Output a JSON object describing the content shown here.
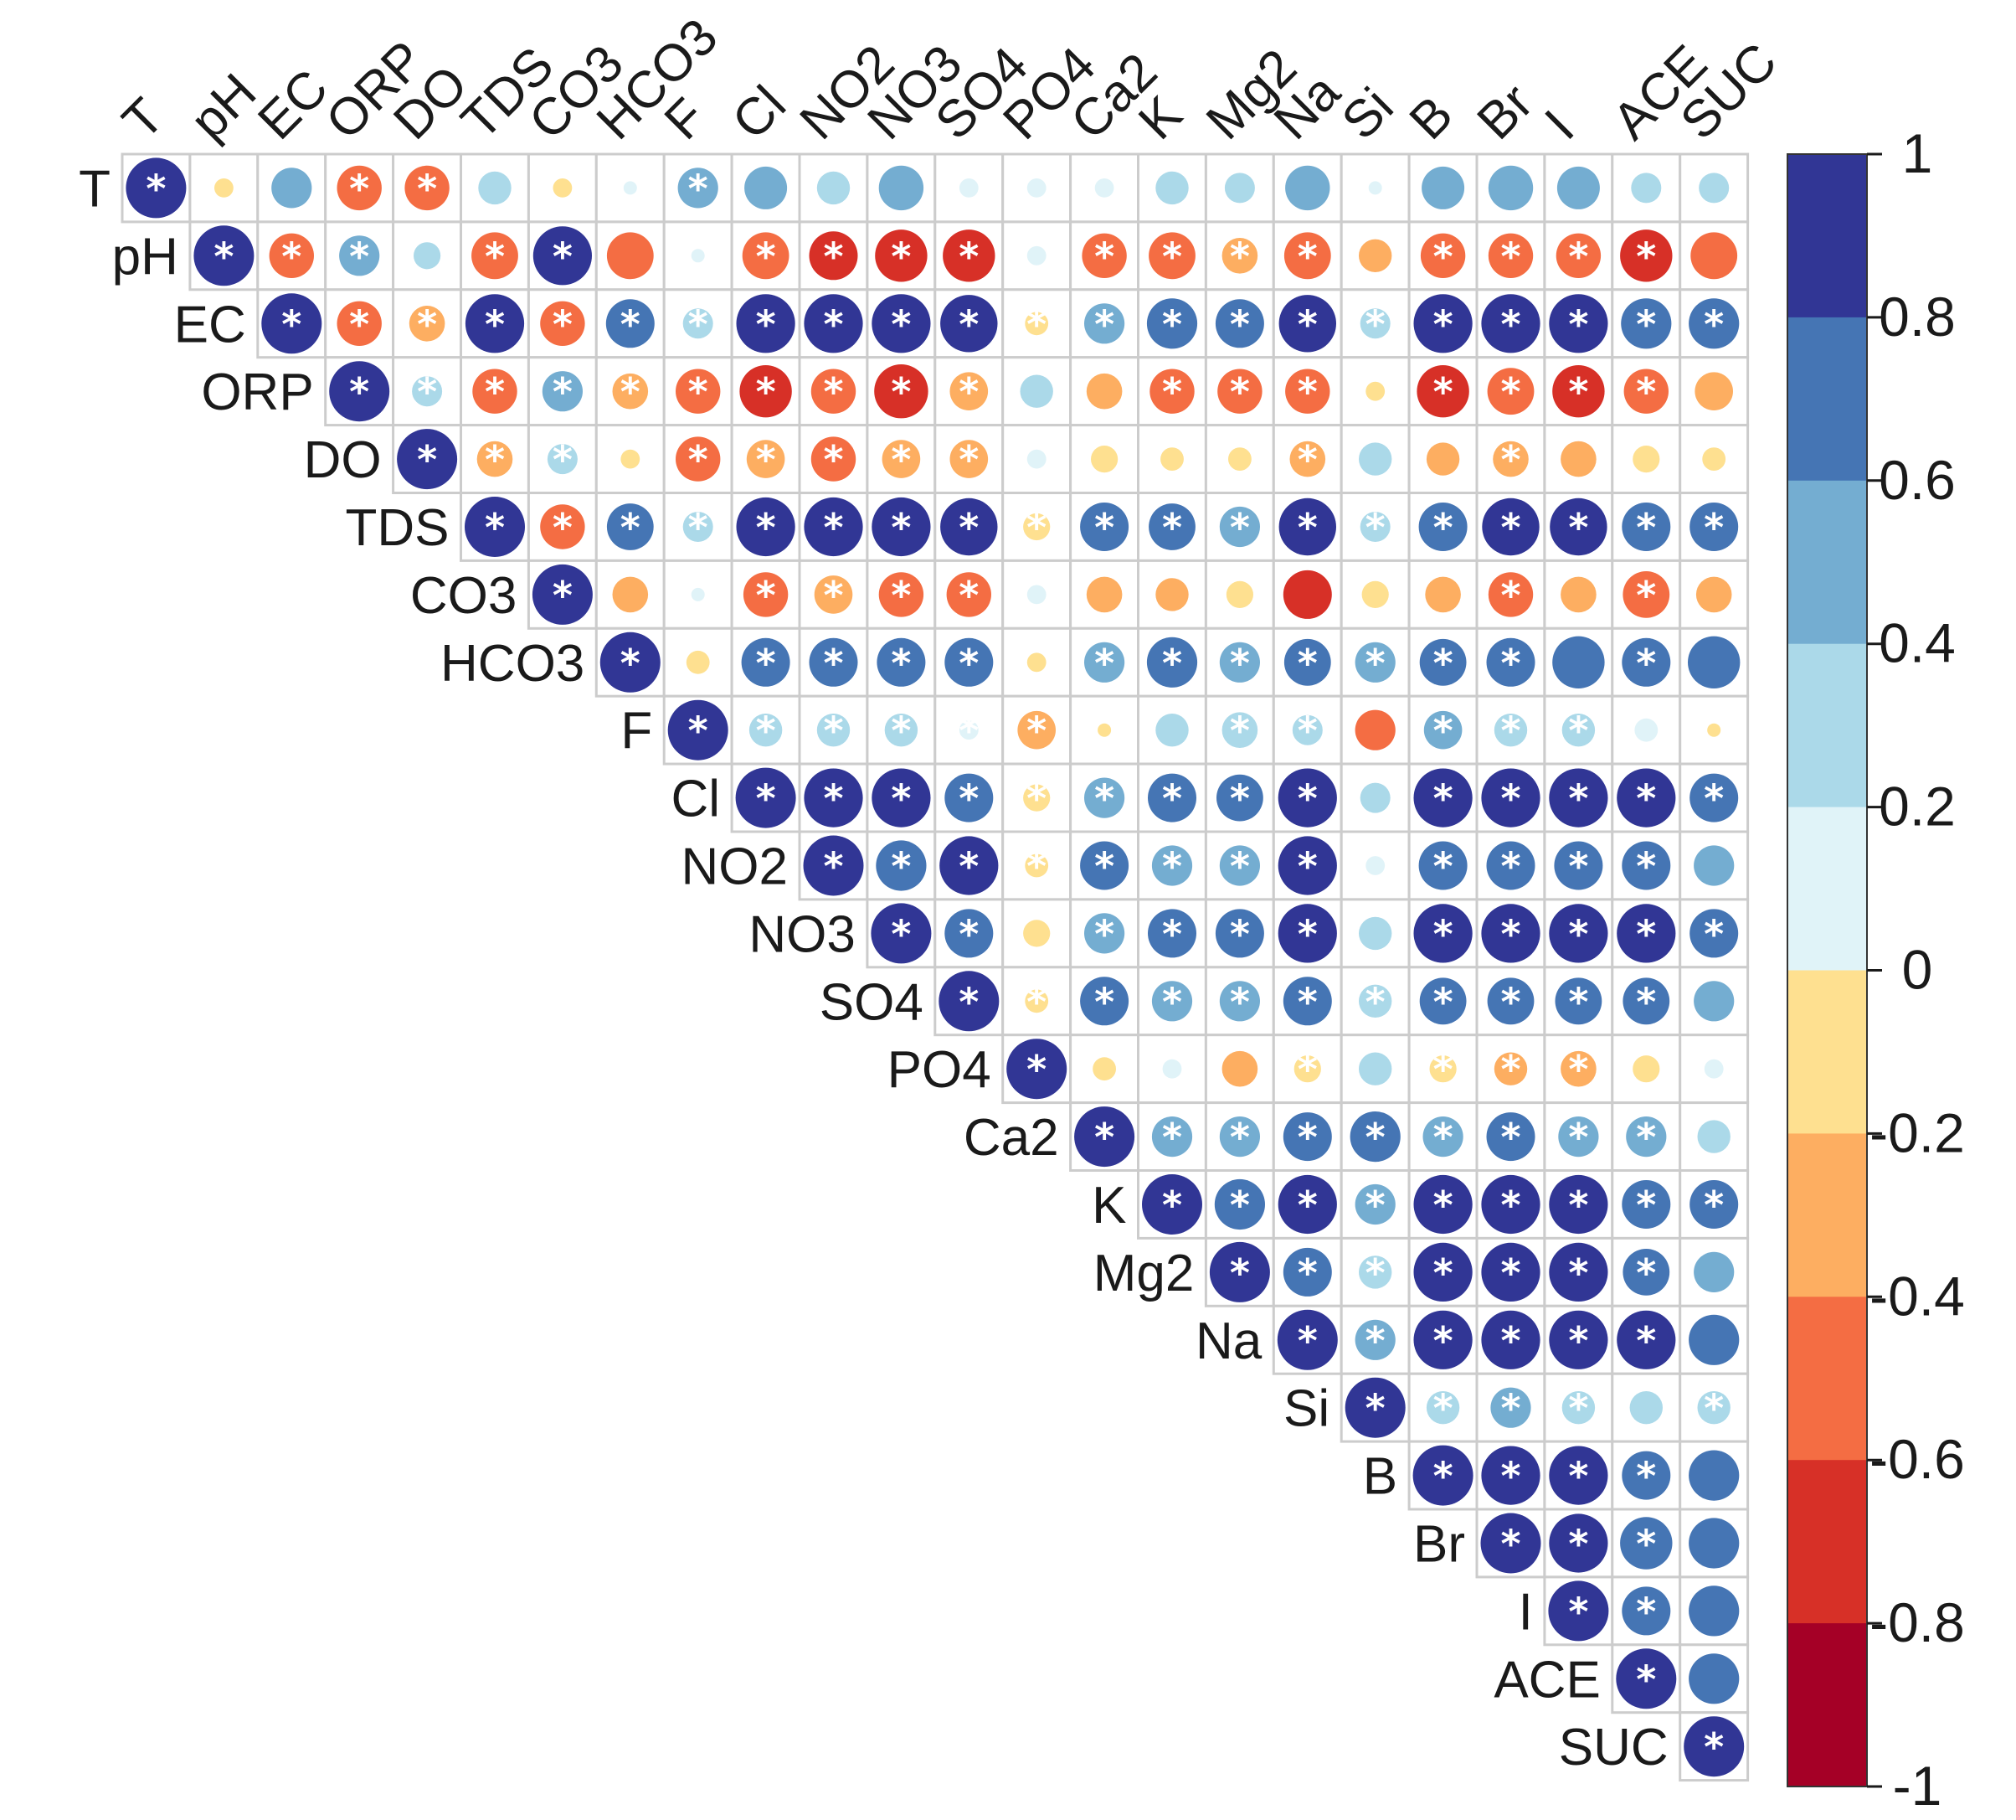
{
  "chart_data": {
    "type": "heatmap",
    "subtype": "correlation-upper-triangle",
    "variables": [
      "T",
      "pH",
      "EC",
      "ORP",
      "DO",
      "TDS",
      "CO3",
      "HCO3",
      "F",
      "Cl",
      "NO2",
      "NO3",
      "SO4",
      "PO4",
      "Ca2",
      "K",
      "Mg2",
      "Na",
      "Si",
      "B",
      "Br",
      "I",
      "ACE",
      "SUC"
    ],
    "significance_marker": "*",
    "correlations": [
      {
        "row": "T",
        "values": [
          1,
          -0.1,
          0.45,
          -0.55,
          -0.55,
          0.3,
          -0.1,
          0.05,
          0.45,
          0.5,
          0.3,
          0.55,
          0.1,
          0.1,
          0.1,
          0.3,
          0.25,
          0.55,
          0.05,
          0.5,
          0.55,
          0.5,
          0.25,
          0.25
        ],
        "signif": [
          1,
          0,
          0,
          1,
          1,
          0,
          0,
          0,
          1,
          0,
          0,
          0,
          0,
          0,
          0,
          0,
          0,
          0,
          0,
          0,
          0,
          0,
          0,
          0
        ]
      },
      {
        "row": "pH",
        "values": [
          1,
          -0.55,
          0.45,
          0.2,
          -0.6,
          0.95,
          -0.6,
          0.05,
          -0.6,
          -0.65,
          -0.75,
          -0.75,
          0.1,
          -0.55,
          -0.6,
          -0.35,
          -0.6,
          -0.3,
          -0.55,
          -0.55,
          -0.55,
          -0.75,
          -0.6
        ],
        "signif": [
          1,
          1,
          1,
          0,
          1,
          1,
          0,
          0,
          1,
          1,
          1,
          1,
          0,
          1,
          1,
          1,
          1,
          0,
          1,
          1,
          1,
          1,
          0
        ]
      },
      {
        "row": "EC",
        "values": [
          1,
          -0.55,
          -0.35,
          0.95,
          -0.55,
          0.65,
          0.25,
          0.95,
          0.95,
          0.95,
          0.9,
          -0.15,
          0.45,
          0.7,
          0.65,
          0.9,
          0.25,
          0.95,
          0.95,
          0.95,
          0.7,
          0.7
        ],
        "signif": [
          1,
          1,
          1,
          1,
          1,
          1,
          1,
          1,
          1,
          1,
          1,
          1,
          1,
          1,
          1,
          1,
          1,
          1,
          1,
          1,
          1,
          1
        ]
      },
      {
        "row": "ORP",
        "values": [
          1,
          0.25,
          -0.55,
          0.45,
          -0.35,
          -0.55,
          -0.75,
          -0.55,
          -0.8,
          -0.4,
          0.3,
          -0.35,
          -0.55,
          -0.55,
          -0.55,
          -0.1,
          -0.75,
          -0.6,
          -0.75,
          -0.55,
          -0.4
        ],
        "signif": [
          1,
          1,
          1,
          1,
          1,
          1,
          1,
          1,
          1,
          1,
          0,
          0,
          1,
          1,
          1,
          0,
          1,
          1,
          1,
          1,
          0
        ]
      },
      {
        "row": "DO",
        "values": [
          1,
          -0.35,
          0.25,
          -0.1,
          -0.55,
          -0.4,
          -0.55,
          -0.4,
          -0.4,
          0.1,
          -0.2,
          -0.15,
          -0.15,
          -0.35,
          0.3,
          -0.3,
          -0.35,
          -0.35,
          -0.2,
          -0.15
        ],
        "signif": [
          1,
          1,
          1,
          0,
          1,
          1,
          1,
          1,
          1,
          0,
          0,
          0,
          0,
          1,
          0,
          0,
          1,
          0,
          0,
          0
        ]
      },
      {
        "row": "TDS",
        "values": [
          1,
          -0.55,
          0.6,
          0.25,
          0.95,
          0.95,
          0.95,
          0.9,
          -0.2,
          0.65,
          0.6,
          0.45,
          0.9,
          0.25,
          0.65,
          0.9,
          0.9,
          0.65,
          0.65
        ],
        "signif": [
          1,
          1,
          1,
          1,
          1,
          1,
          1,
          1,
          1,
          1,
          1,
          1,
          1,
          1,
          1,
          1,
          1,
          1,
          1
        ]
      },
      {
        "row": "CO3",
        "values": [
          1,
          -0.35,
          0.05,
          -0.55,
          -0.4,
          -0.55,
          -0.55,
          0.1,
          -0.35,
          -0.3,
          -0.2,
          -0.65,
          -0.2,
          -0.35,
          -0.55,
          -0.35,
          -0.6,
          -0.35
        ],
        "signif": [
          1,
          0,
          0,
          1,
          1,
          1,
          1,
          0,
          0,
          0,
          0,
          0,
          0,
          0,
          1,
          0,
          1,
          0
        ]
      },
      {
        "row": "HCO3",
        "values": [
          1,
          -0.15,
          0.65,
          0.65,
          0.65,
          0.65,
          -0.1,
          0.45,
          0.7,
          0.45,
          0.6,
          0.45,
          0.6,
          0.65,
          0.75,
          0.65,
          0.75
        ],
        "signif": [
          1,
          0,
          1,
          1,
          1,
          1,
          0,
          1,
          1,
          1,
          1,
          1,
          1,
          1,
          0,
          1,
          0
        ]
      },
      {
        "row": "F",
        "values": [
          1,
          0.3,
          0.3,
          0.3,
          0.1,
          -0.4,
          -0.05,
          0.3,
          0.35,
          0.25,
          -0.45,
          0.4,
          0.3,
          0.3,
          0.15,
          -0.05
        ],
        "signif": [
          1,
          1,
          1,
          1,
          1,
          1,
          0,
          0,
          1,
          1,
          0,
          1,
          1,
          1,
          0,
          0
        ]
      },
      {
        "row": "Cl",
        "values": [
          1,
          0.95,
          0.95,
          0.65,
          -0.2,
          0.45,
          0.65,
          0.6,
          0.95,
          0.25,
          0.95,
          0.95,
          0.95,
          0.95,
          0.65
        ],
        "signif": [
          1,
          1,
          1,
          1,
          1,
          1,
          1,
          1,
          1,
          0,
          1,
          1,
          1,
          1,
          1
        ]
      },
      {
        "row": "NO2",
        "values": [
          1,
          0.7,
          0.95,
          -0.15,
          0.65,
          0.45,
          0.45,
          0.95,
          0.1,
          0.65,
          0.65,
          0.65,
          0.65,
          0.45
        ],
        "signif": [
          1,
          1,
          1,
          1,
          1,
          1,
          1,
          1,
          0,
          1,
          1,
          1,
          1,
          0
        ]
      },
      {
        "row": "NO3",
        "values": [
          1,
          0.65,
          -0.2,
          0.45,
          0.65,
          0.65,
          0.95,
          0.3,
          0.95,
          0.95,
          0.95,
          0.95,
          0.65
        ],
        "signif": [
          1,
          1,
          0,
          1,
          1,
          1,
          1,
          0,
          1,
          1,
          1,
          1,
          1
        ]
      },
      {
        "row": "SO4",
        "values": [
          1,
          -0.15,
          0.65,
          0.45,
          0.45,
          0.65,
          0.3,
          0.6,
          0.6,
          0.6,
          0.6,
          0.45
        ],
        "signif": [
          1,
          1,
          1,
          1,
          1,
          1,
          1,
          1,
          1,
          1,
          1,
          0
        ]
      },
      {
        "row": "PO4",
        "values": [
          1,
          -0.15,
          0.1,
          -0.35,
          -0.2,
          0.3,
          -0.2,
          -0.3,
          -0.35,
          -0.2,
          0.1
        ],
        "signif": [
          1,
          0,
          0,
          0,
          1,
          0,
          1,
          1,
          1,
          0,
          0
        ]
      },
      {
        "row": "Ca2",
        "values": [
          1,
          0.45,
          0.45,
          0.65,
          0.7,
          0.45,
          0.65,
          0.45,
          0.45,
          0.3
        ],
        "signif": [
          1,
          1,
          1,
          1,
          1,
          1,
          1,
          1,
          1,
          0
        ]
      },
      {
        "row": "K",
        "values": [
          1,
          0.7,
          0.95,
          0.45,
          0.95,
          0.95,
          0.95,
          0.65,
          0.65
        ],
        "signif": [
          1,
          1,
          1,
          1,
          1,
          1,
          1,
          1,
          1
        ]
      },
      {
        "row": "Mg2",
        "values": [
          1,
          0.65,
          0.3,
          0.95,
          0.95,
          0.95,
          0.6,
          0.45
        ],
        "signif": [
          1,
          1,
          1,
          1,
          1,
          1,
          1,
          0
        ]
      },
      {
        "row": "Na",
        "values": [
          1,
          0.45,
          0.95,
          0.95,
          0.95,
          0.95,
          0.7
        ],
        "signif": [
          1,
          1,
          1,
          1,
          1,
          1,
          0
        ]
      },
      {
        "row": "Si",
        "values": [
          1,
          0.3,
          0.45,
          0.3,
          0.3,
          0.3
        ],
        "signif": [
          1,
          1,
          1,
          1,
          0,
          1
        ]
      },
      {
        "row": "B",
        "values": [
          1,
          0.95,
          0.95,
          0.65,
          0.7
        ],
        "signif": [
          1,
          1,
          1,
          1,
          0
        ]
      },
      {
        "row": "Br",
        "values": [
          1,
          0.95,
          0.75,
          0.7
        ],
        "signif": [
          1,
          1,
          1,
          0
        ]
      },
      {
        "row": "I",
        "values": [
          1,
          0.65,
          0.7
        ],
        "signif": [
          1,
          1,
          0
        ]
      },
      {
        "row": "ACE",
        "values": [
          1,
          0.7
        ],
        "signif": [
          1,
          0
        ]
      },
      {
        "row": "SUC",
        "values": [
          1
        ],
        "signif": [
          1
        ]
      }
    ],
    "colorbar": {
      "range": [
        -1,
        1
      ],
      "tick_labels": [
        "1",
        "0.8",
        "0.6",
        "0.4",
        "0.2",
        "0",
        "-0.2",
        "-0.4",
        "-0.6",
        "-0.8",
        "-1"
      ],
      "bins": [
        {
          "from": 0.8,
          "to": 1,
          "color": "#313695"
        },
        {
          "from": 0.6,
          "to": 0.8,
          "color": "#4575b4"
        },
        {
          "from": 0.4,
          "to": 0.6,
          "color": "#74add1"
        },
        {
          "from": 0.2,
          "to": 0.4,
          "color": "#abd9e9"
        },
        {
          "from": 0,
          "to": 0.2,
          "color": "#e0f3f8"
        },
        {
          "from": -0.2,
          "to": 0,
          "color": "#fee090"
        },
        {
          "from": -0.4,
          "to": -0.2,
          "color": "#fdae61"
        },
        {
          "from": -0.6,
          "to": -0.4,
          "color": "#f46d43"
        },
        {
          "from": -0.8,
          "to": -0.6,
          "color": "#d73027"
        },
        {
          "from": -1,
          "to": -0.8,
          "color": "#a50026"
        }
      ]
    }
  }
}
